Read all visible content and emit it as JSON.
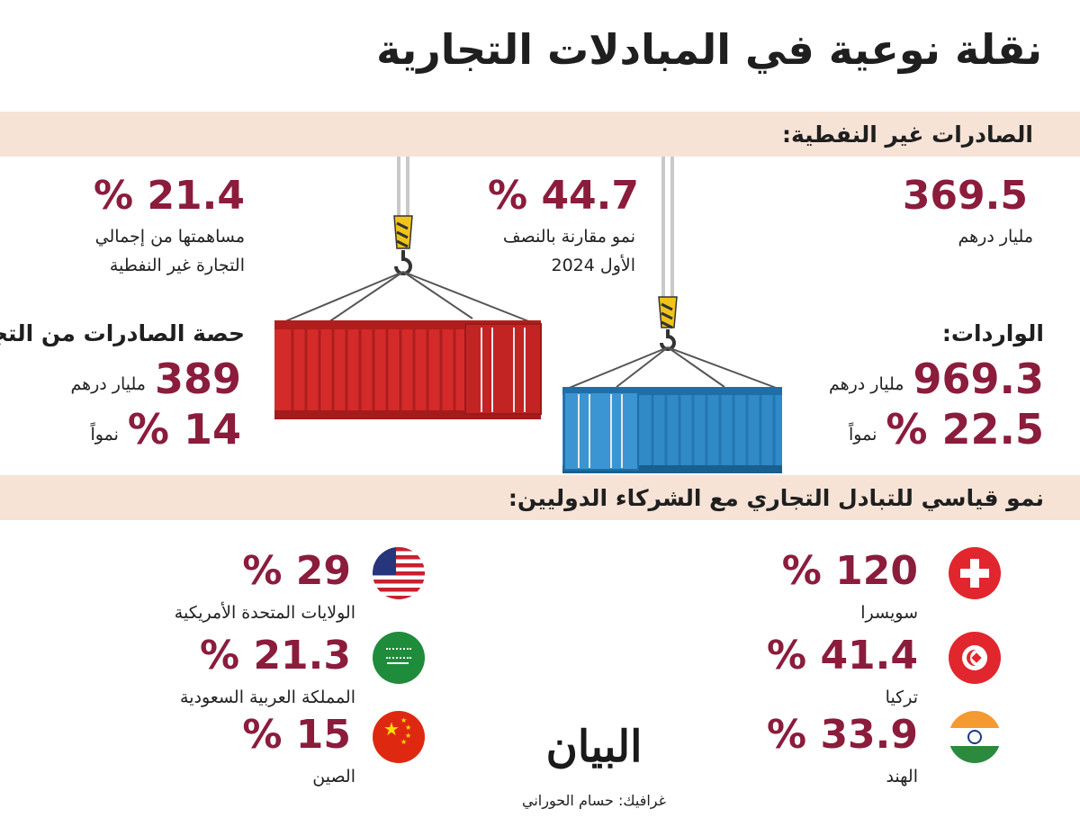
{
  "title": "نقلة نوعية في المبادلات التجارية",
  "non_oil_exports": {
    "heading": "الصادرات غير النفطية:",
    "value_1": "369.5",
    "value_1_caption": "مليار درهم",
    "value_2": "44.7 %",
    "value_2_caption_line1": "نمو مقارنة بالنصف",
    "value_2_caption_line2": "الأول 2024",
    "value_3": "21.4 %",
    "value_3_caption_line1": "مساهمتها من إجمالي",
    "value_3_caption_line2": "التجارة غير النفطية"
  },
  "imports": {
    "heading": "الواردات:",
    "amount": "969.3",
    "amount_unit": "مليار درهم",
    "growth": "22.5 %",
    "growth_label": "نمواً"
  },
  "exports_share": {
    "heading": "حصة الصادرات من التجارة",
    "amount": "389",
    "amount_unit": "مليار درهم",
    "growth": "14 %",
    "growth_label": "نمواً"
  },
  "partners": {
    "heading": "نمو قياسي للتبادل التجاري مع الشركاء الدوليين:",
    "right_column": [
      {
        "value": "120 %",
        "country": "سويسرا",
        "icon": "switzerland-flag-icon"
      },
      {
        "value": "41.4 %",
        "country": "تركيا",
        "icon": "tunisia-flag-icon"
      },
      {
        "value": "33.9 %",
        "country": "الهند",
        "icon": "india-flag-icon"
      }
    ],
    "left_column": [
      {
        "value": "29 %",
        "country": "الولايات المتحدة الأمريكية",
        "icon": "usa-flag-icon"
      },
      {
        "value": "21.3 %",
        "country": "المملكة العربية السعودية",
        "icon": "saudi-flag-icon"
      },
      {
        "value": "15 %",
        "country": "الصين",
        "icon": "china-flag-icon"
      }
    ]
  },
  "footer": {
    "logo_text": "البيان",
    "credit": "غرافيك: حسام الحوراني"
  },
  "colors": {
    "accent": "#8b1c3c",
    "band": "#f6e3d6",
    "red_container": "#d42a2a",
    "blue_container": "#2f8ac6"
  }
}
